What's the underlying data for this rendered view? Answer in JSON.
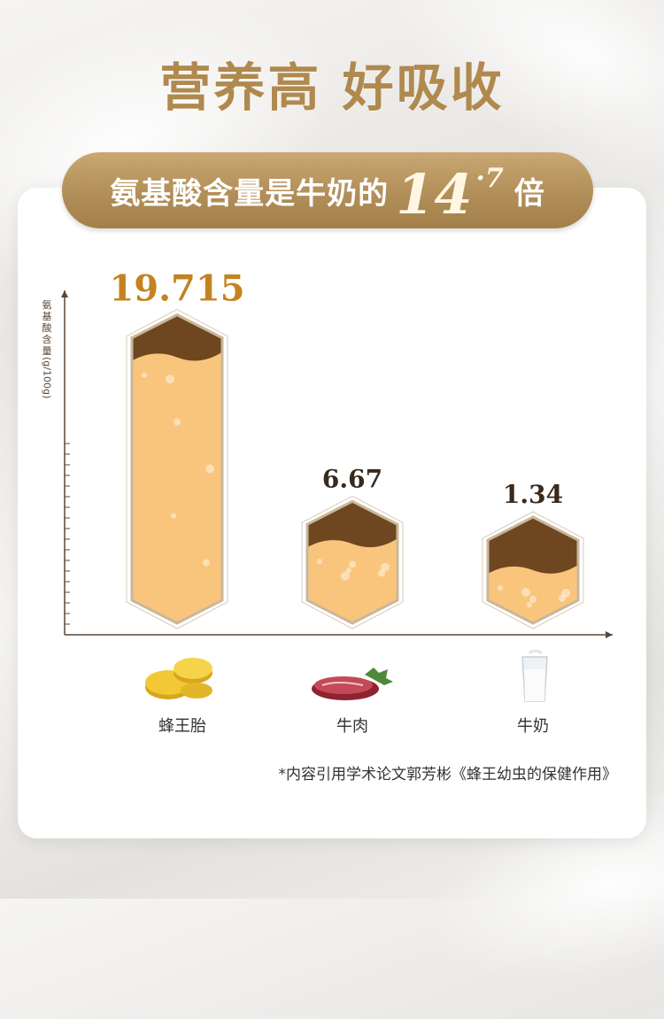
{
  "header": {
    "title": "营养高 好吸收"
  },
  "ribbon": {
    "prefix": "氨基酸含量是牛奶的",
    "number": "14",
    "decimal": "·7",
    "suffix": "倍"
  },
  "colors": {
    "gold": "#b0894f",
    "value_gold": "#c4831e",
    "fill_light": "#f9c57c",
    "fill_dark": "#6e4721",
    "hex_border": "#c9b79b"
  },
  "chart_data": {
    "type": "bar",
    "ylabel_cjk": [
      "氨",
      "基",
      "酸",
      "含",
      "量"
    ],
    "ylabel_unit": "(g/100g)",
    "categories": [
      "蜂王胎",
      "牛肉",
      "牛奶"
    ],
    "values": [
      19.715,
      6.67,
      1.34
    ],
    "value_labels": [
      "19.715",
      "6.67",
      "1.34"
    ],
    "ylim": [
      0,
      22
    ],
    "icons": [
      "royal-jelly-tablets-icon",
      "beef-icon",
      "milk-glass-icon"
    ]
  },
  "footnote": "*内容引用学术论文郭芳彬《蜂王幼虫的保健作用》"
}
